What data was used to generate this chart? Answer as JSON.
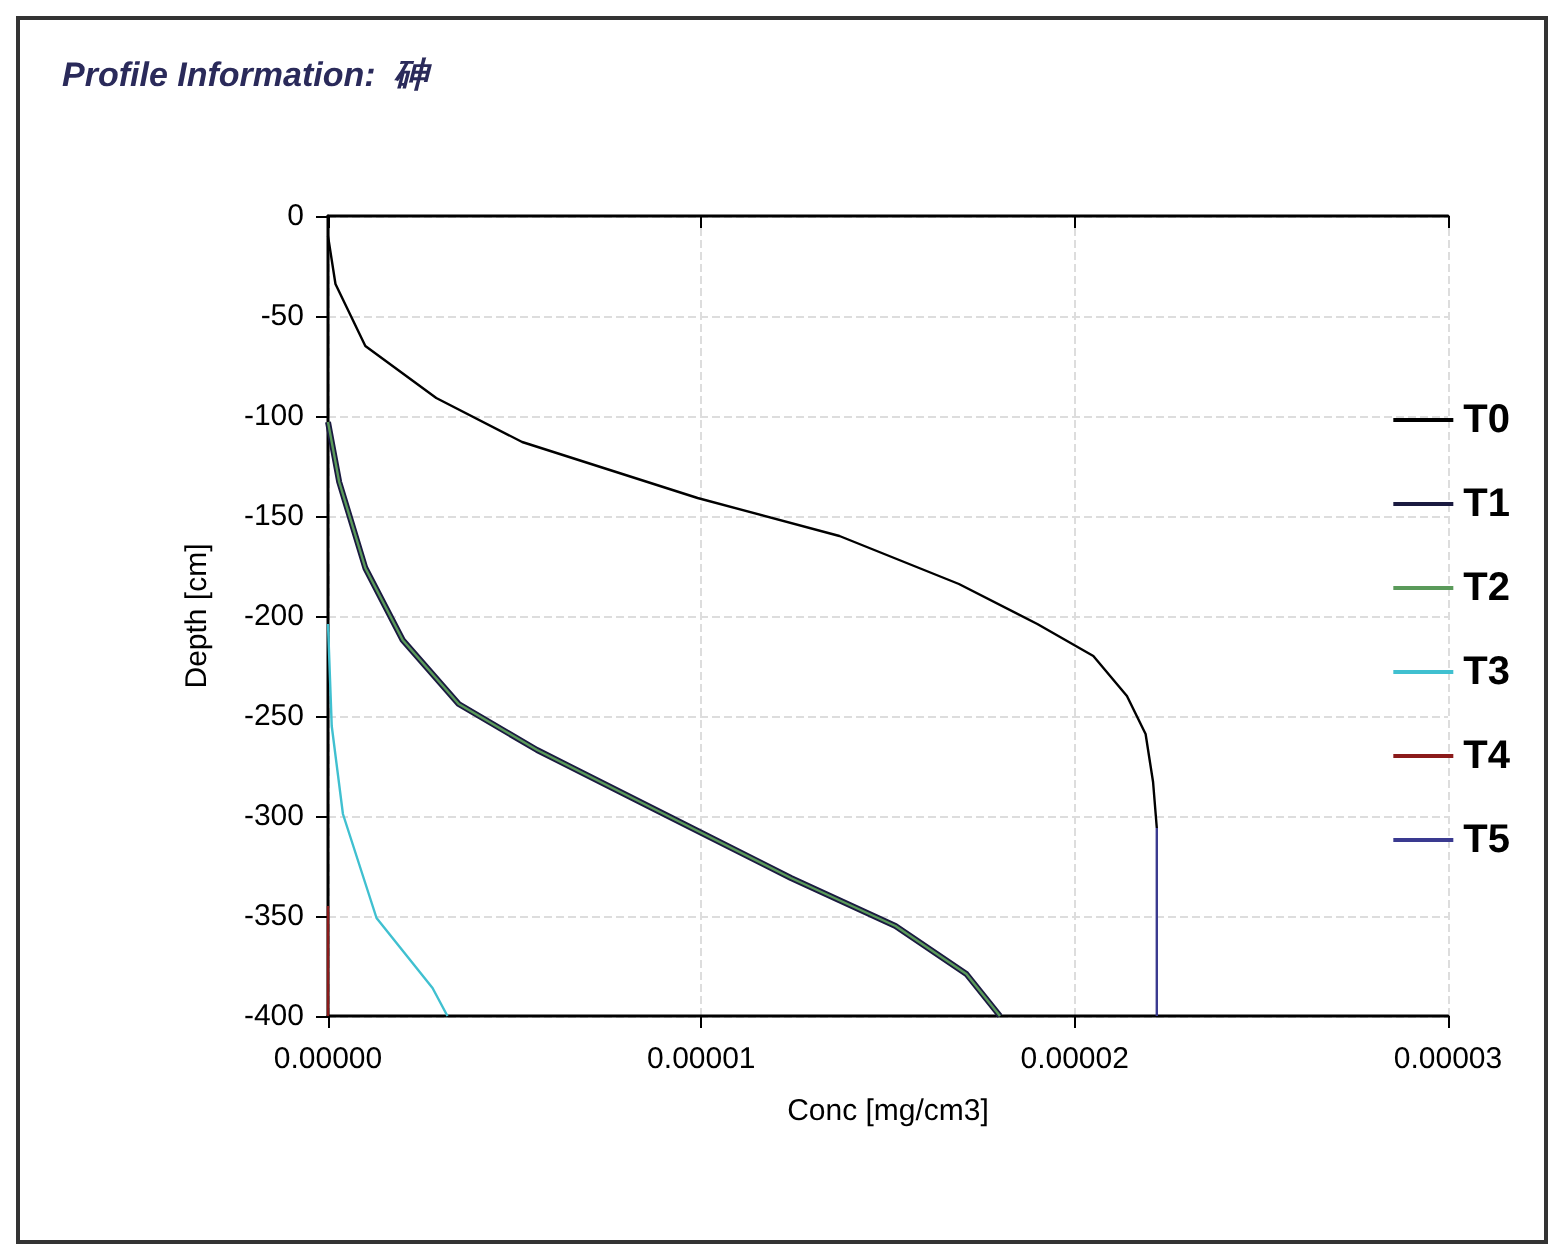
{
  "chart_data": {
    "type": "line",
    "title": "Profile Information:  砷",
    "xlabel": "Conc [mg/cm3]",
    "ylabel": "Depth [cm]",
    "xlim": [
      0,
      3e-05
    ],
    "xticks": [
      {
        "value": 0,
        "label": "0.00000"
      },
      {
        "value": 1e-05,
        "label": "0.00001"
      },
      {
        "value": 2e-05,
        "label": "0.00002"
      },
      {
        "value": 3e-05,
        "label": "0.00003"
      }
    ],
    "ylim": [
      -400,
      0
    ],
    "yticks": [
      0,
      -50,
      -100,
      -150,
      -200,
      -250,
      -300,
      -350,
      -400
    ],
    "grid": true,
    "legend": "right",
    "marker": "none",
    "line_style": "solid",
    "series": [
      {
        "name": "T0",
        "color": "#000000",
        "x": [
          0,
          2e-07,
          1e-06,
          2.9e-06,
          5.2e-06,
          9.9e-06,
          1.37e-05,
          1.69e-05,
          1.9e-05,
          2.05e-05,
          2.14e-05,
          2.19e-05,
          2.21e-05,
          2.22e-05
        ],
        "values": [
          -10,
          -34,
          -65,
          -91,
          -113,
          -141,
          -160,
          -184,
          -204,
          -220,
          -240,
          -259,
          -283,
          -306
        ]
      },
      {
        "name": "T1",
        "color": "#1a1a40",
        "x": [
          0,
          3e-07,
          1e-06,
          2e-06,
          3.5e-06,
          5.6e-06,
          9e-06,
          1.24e-05,
          1.52e-05,
          1.71e-05,
          1.8e-05
        ],
        "values": [
          -103,
          -133,
          -176,
          -212,
          -244,
          -267,
          -299,
          -331,
          -355,
          -379,
          -400
        ]
      },
      {
        "name": "T2",
        "color": "#5a9a5a",
        "x": [
          0,
          3e-07,
          1e-06,
          2e-06,
          3.5e-06,
          5.6e-06,
          9e-06,
          1.24e-05,
          1.52e-05,
          1.71e-05,
          1.8e-05
        ],
        "values": [
          -103,
          -133,
          -176,
          -212,
          -244,
          -267,
          -299,
          -331,
          -355,
          -379,
          -400
        ]
      },
      {
        "name": "T3",
        "color": "#40c0d0",
        "x": [
          0,
          1e-07,
          4e-07,
          1.3e-06,
          2.8e-06,
          3.2e-06
        ],
        "values": [
          -204,
          -255,
          -299,
          -351,
          -386,
          -400
        ]
      },
      {
        "name": "T4",
        "color": "#8b1a1a",
        "x": [
          0,
          0
        ],
        "values": [
          -345,
          -400
        ]
      },
      {
        "name": "T5",
        "color": "#3a3a90",
        "x": [
          2.22e-05,
          2.22e-05
        ],
        "values": [
          -306,
          -400
        ]
      }
    ]
  }
}
